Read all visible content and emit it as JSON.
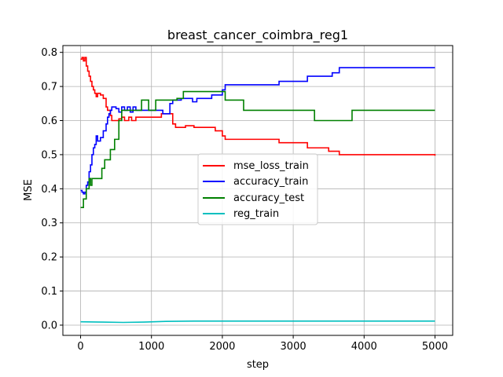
{
  "chart_data": {
    "type": "line",
    "title": "breast_cancer_coimbra_reg1",
    "xlabel": "step",
    "ylabel": "MSE",
    "xlim": [
      -250,
      5250
    ],
    "ylim": [
      -0.03,
      0.82
    ],
    "xticks": [
      0,
      1000,
      2000,
      3000,
      4000,
      5000
    ],
    "xtick_labels": [
      "0",
      "1000",
      "2000",
      "3000",
      "4000",
      "5000"
    ],
    "yticks": [
      0.0,
      0.1,
      0.2,
      0.3,
      0.4,
      0.5,
      0.6,
      0.7,
      0.8
    ],
    "ytick_labels": [
      "0.0",
      "0.1",
      "0.2",
      "0.3",
      "0.4",
      "0.5",
      "0.6",
      "0.7",
      "0.8"
    ],
    "grid": true,
    "legend_position": "center-right",
    "series": [
      {
        "name": "mse_loss_train",
        "color": "#ff0000",
        "step": true,
        "points": [
          [
            0,
            0.78
          ],
          [
            20,
            0.785
          ],
          [
            40,
            0.775
          ],
          [
            60,
            0.785
          ],
          [
            80,
            0.76
          ],
          [
            100,
            0.745
          ],
          [
            120,
            0.73
          ],
          [
            140,
            0.715
          ],
          [
            160,
            0.7
          ],
          [
            180,
            0.69
          ],
          [
            200,
            0.68
          ],
          [
            220,
            0.67
          ],
          [
            240,
            0.68
          ],
          [
            280,
            0.675
          ],
          [
            320,
            0.665
          ],
          [
            360,
            0.64
          ],
          [
            380,
            0.63
          ],
          [
            420,
            0.615
          ],
          [
            440,
            0.6
          ],
          [
            480,
            0.6
          ],
          [
            540,
            0.605
          ],
          [
            580,
            0.61
          ],
          [
            620,
            0.6
          ],
          [
            680,
            0.61
          ],
          [
            720,
            0.6
          ],
          [
            780,
            0.61
          ],
          [
            1000,
            0.61
          ],
          [
            1140,
            0.62
          ],
          [
            1300,
            0.59
          ],
          [
            1340,
            0.58
          ],
          [
            1480,
            0.585
          ],
          [
            1600,
            0.58
          ],
          [
            1900,
            0.57
          ],
          [
            2000,
            0.555
          ],
          [
            2040,
            0.545
          ],
          [
            2800,
            0.535
          ],
          [
            3200,
            0.52
          ],
          [
            3500,
            0.51
          ],
          [
            3650,
            0.5
          ],
          [
            5000,
            0.497
          ]
        ]
      },
      {
        "name": "accuracy_train",
        "color": "#0000ff",
        "step": true,
        "points": [
          [
            0,
            0.395
          ],
          [
            20,
            0.39
          ],
          [
            40,
            0.385
          ],
          [
            60,
            0.39
          ],
          [
            80,
            0.41
          ],
          [
            100,
            0.42
          ],
          [
            120,
            0.45
          ],
          [
            140,
            0.47
          ],
          [
            160,
            0.5
          ],
          [
            180,
            0.52
          ],
          [
            200,
            0.53
          ],
          [
            220,
            0.555
          ],
          [
            240,
            0.54
          ],
          [
            280,
            0.55
          ],
          [
            320,
            0.57
          ],
          [
            360,
            0.59
          ],
          [
            380,
            0.61
          ],
          [
            400,
            0.62
          ],
          [
            420,
            0.63
          ],
          [
            440,
            0.64
          ],
          [
            500,
            0.635
          ],
          [
            540,
            0.625
          ],
          [
            580,
            0.64
          ],
          [
            620,
            0.63
          ],
          [
            660,
            0.64
          ],
          [
            700,
            0.625
          ],
          [
            740,
            0.64
          ],
          [
            780,
            0.63
          ],
          [
            1160,
            0.62
          ],
          [
            1260,
            0.65
          ],
          [
            1300,
            0.66
          ],
          [
            1420,
            0.665
          ],
          [
            1580,
            0.655
          ],
          [
            1640,
            0.665
          ],
          [
            1850,
            0.675
          ],
          [
            2000,
            0.69
          ],
          [
            2040,
            0.705
          ],
          [
            2800,
            0.715
          ],
          [
            3200,
            0.73
          ],
          [
            3550,
            0.74
          ],
          [
            3650,
            0.755
          ],
          [
            5000,
            0.755
          ]
        ]
      },
      {
        "name": "accuracy_test",
        "color": "#008000",
        "step": true,
        "points": [
          [
            0,
            0.345
          ],
          [
            40,
            0.37
          ],
          [
            80,
            0.4
          ],
          [
            120,
            0.43
          ],
          [
            140,
            0.41
          ],
          [
            160,
            0.43
          ],
          [
            200,
            0.43
          ],
          [
            300,
            0.46
          ],
          [
            340,
            0.485
          ],
          [
            420,
            0.515
          ],
          [
            480,
            0.545
          ],
          [
            540,
            0.6
          ],
          [
            580,
            0.63
          ],
          [
            860,
            0.66
          ],
          [
            960,
            0.63
          ],
          [
            1060,
            0.66
          ],
          [
            1360,
            0.665
          ],
          [
            1450,
            0.685
          ],
          [
            2040,
            0.66
          ],
          [
            2300,
            0.63
          ],
          [
            3300,
            0.6
          ],
          [
            3830,
            0.63
          ],
          [
            5000,
            0.63
          ]
        ]
      },
      {
        "name": "reg_train",
        "color": "#00bfbf",
        "step": false,
        "points": [
          [
            0,
            0.01
          ],
          [
            300,
            0.009
          ],
          [
            600,
            0.008
          ],
          [
            900,
            0.009
          ],
          [
            1200,
            0.011
          ],
          [
            1600,
            0.012
          ],
          [
            2000,
            0.012
          ],
          [
            2600,
            0.012
          ],
          [
            3200,
            0.012
          ],
          [
            4000,
            0.012
          ],
          [
            5000,
            0.012
          ]
        ]
      }
    ]
  }
}
